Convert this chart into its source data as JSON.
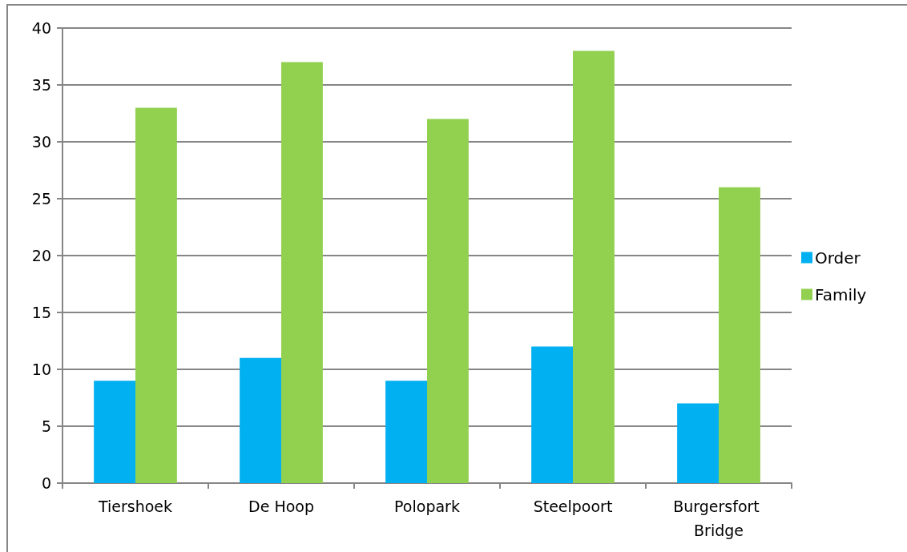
{
  "chart_data": {
    "type": "bar",
    "categories": [
      "Tiershoek",
      "De Hoop",
      "Polopark",
      "Steelpoort",
      "Burgersfort Bridge"
    ],
    "series": [
      {
        "name": "Order",
        "color": "#00b0f0",
        "values": [
          9,
          11,
          9,
          12,
          7
        ]
      },
      {
        "name": "Family",
        "color": "#92d050",
        "values": [
          33,
          37,
          32,
          38,
          26
        ]
      }
    ],
    "ylim": [
      0,
      40
    ],
    "yticks": [
      0,
      5,
      10,
      15,
      20,
      25,
      30,
      35,
      40
    ],
    "grid": "y",
    "legend": "right"
  }
}
